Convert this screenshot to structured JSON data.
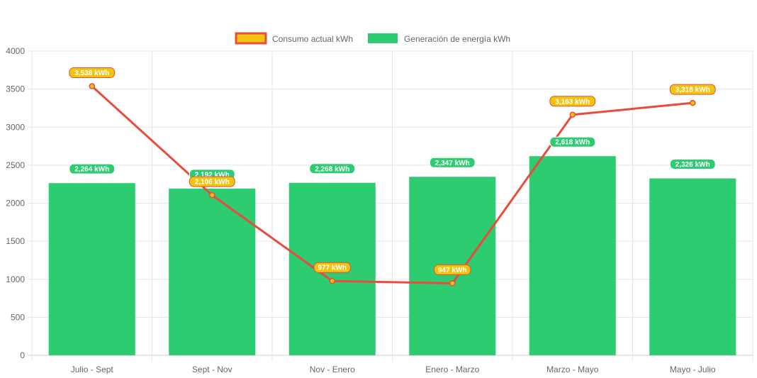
{
  "chart_data": {
    "type": "bar",
    "categories": [
      "Julio - Sept",
      "Sept - Nov",
      "Nov - Enero",
      "Enero - Marzo",
      "Marzo - Mayo",
      "Mayo - Julio"
    ],
    "series": [
      {
        "name": "Consumo actual kWh",
        "type": "line",
        "values": [
          3538,
          2106,
          977,
          947,
          3163,
          3318
        ],
        "labels": [
          "3,538 kWh",
          "2,106 kWh",
          "977 kWh",
          "947 kWh",
          "3,163 kWh",
          "3,318 kWh"
        ],
        "color": "#e74c3c",
        "fill": "#f1c40f"
      },
      {
        "name": "Generación de energía kWh",
        "type": "bar",
        "values": [
          2264,
          2192,
          2268,
          2347,
          2618,
          2326
        ],
        "labels": [
          "2,264 kWh",
          "2,192 kWh",
          "2,268 kWh",
          "2,347 kWh",
          "2,618 kWh",
          "2,326 kWh"
        ],
        "color": "#2ecc71"
      }
    ],
    "y_ticks": [
      "0",
      "500",
      "1000",
      "1500",
      "2000",
      "2500",
      "3000",
      "3500",
      "4000"
    ],
    "ylim": [
      0,
      4000
    ],
    "grid": true,
    "legend_position": "top-center"
  }
}
